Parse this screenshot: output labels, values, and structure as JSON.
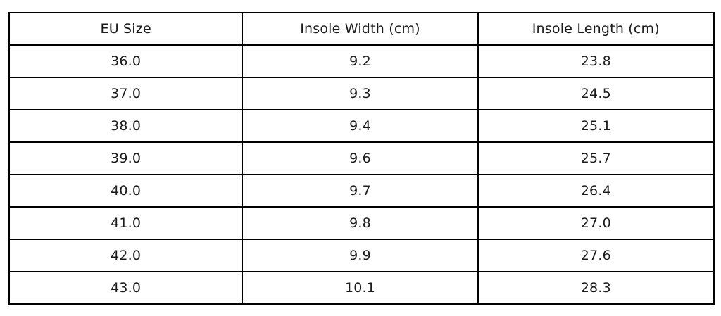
{
  "chart_data": {
    "type": "table",
    "title": "",
    "columns": [
      "EU Size",
      "Insole Width (cm)",
      "Insole Length (cm)"
    ],
    "rows": [
      [
        "36.0",
        "9.2",
        "23.8"
      ],
      [
        "37.0",
        "9.3",
        "24.5"
      ],
      [
        "38.0",
        "9.4",
        "25.1"
      ],
      [
        "39.0",
        "9.6",
        "25.7"
      ],
      [
        "40.0",
        "9.7",
        "26.4"
      ],
      [
        "41.0",
        "9.8",
        "27.0"
      ],
      [
        "42.0",
        "9.9",
        "27.6"
      ],
      [
        "43.0",
        "10.1",
        "28.3"
      ]
    ],
    "layout": {
      "grid": "all-borders",
      "border_color": "#000000",
      "text_color": "#1c1c1c",
      "background": "#ffffff"
    }
  }
}
